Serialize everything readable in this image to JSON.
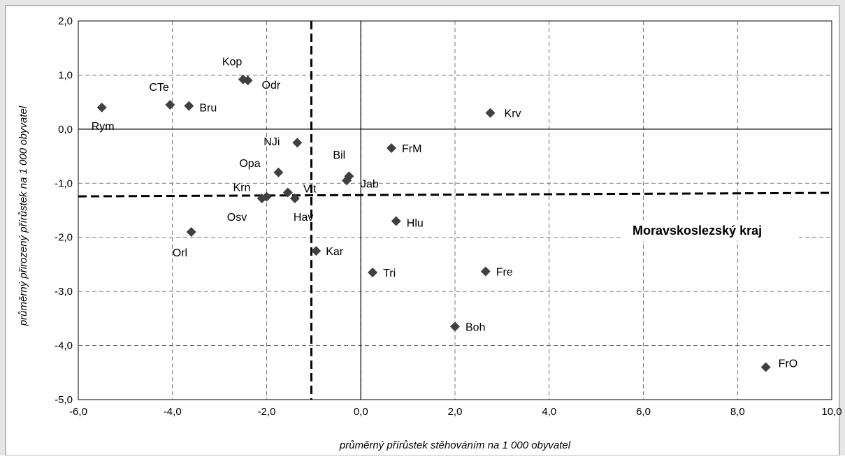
{
  "chart_data": {
    "type": "scatter",
    "title": "",
    "xlabel": "průměrný přírůstek stěhováním na 1 000 obyvatel",
    "ylabel": "průměrný přirozený přírůstek na 1 000 obyvatel",
    "xlim": [
      -6,
      10
    ],
    "ylim": [
      -5,
      2
    ],
    "xticks": [
      -6,
      -4,
      -2,
      0,
      2,
      4,
      6,
      8,
      10
    ],
    "yticks": [
      -5,
      -4,
      -3,
      -2,
      -1,
      0,
      1,
      2
    ],
    "xtick_labels": [
      "-6,0",
      "-4,0",
      "-2,0",
      "0,0",
      "2,0",
      "4,0",
      "6,0",
      "8,0",
      "10,0"
    ],
    "ytick_labels": [
      "-5,0",
      "-4,0",
      "-3,0",
      "-2,0",
      "-1,0",
      "0,0",
      "1,0",
      "2,0"
    ],
    "grid": true,
    "marker": "diamond",
    "marker_color": "#404040",
    "reference_lines": {
      "label": "Moravskoslezský kraj",
      "x": -1.05,
      "y": -1.23
    },
    "points": [
      {
        "label": "Rym",
        "x": -5.5,
        "y": 0.4
      },
      {
        "label": "CTe",
        "x": -4.05,
        "y": 0.45
      },
      {
        "label": "Bru",
        "x": -3.65,
        "y": 0.43
      },
      {
        "label": "Kop",
        "x": -2.5,
        "y": 0.92
      },
      {
        "label": "Odr",
        "x": -2.4,
        "y": 0.9
      },
      {
        "label": "NJi",
        "x": -1.35,
        "y": -0.25
      },
      {
        "label": "Opa",
        "x": -1.75,
        "y": -0.8
      },
      {
        "label": "Vlt",
        "x": -1.55,
        "y": -1.17
      },
      {
        "label": "Krn",
        "x": -2.0,
        "y": -1.25
      },
      {
        "label": "Osv",
        "x": -2.1,
        "y": -1.28
      },
      {
        "label": "Hav",
        "x": -1.4,
        "y": -1.28
      },
      {
        "label": "Orl",
        "x": -3.6,
        "y": -1.9
      },
      {
        "label": "Kar",
        "x": -0.95,
        "y": -2.25
      },
      {
        "label": "Bil",
        "x": -0.25,
        "y": -0.87
      },
      {
        "label": "Jab",
        "x": -0.3,
        "y": -0.95
      },
      {
        "label": "FrM",
        "x": 0.65,
        "y": -0.35
      },
      {
        "label": "Hlu",
        "x": 0.75,
        "y": -1.7
      },
      {
        "label": "Tri",
        "x": 0.25,
        "y": -2.65
      },
      {
        "label": "Krv",
        "x": 2.75,
        "y": 0.3
      },
      {
        "label": "Fre",
        "x": 2.65,
        "y": -2.63
      },
      {
        "label": "Boh",
        "x": 2.0,
        "y": -3.65
      },
      {
        "label": "FrO",
        "x": 8.6,
        "y": -4.4
      }
    ]
  }
}
